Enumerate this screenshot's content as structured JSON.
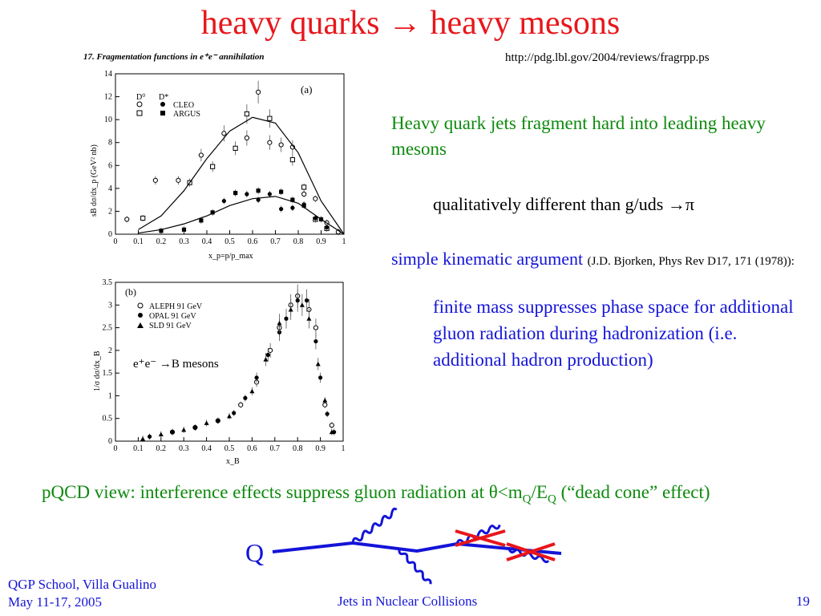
{
  "slide": {
    "title": "heavy quarks → heavy mesons",
    "url": "http://pdg.lbl.gov/2004/reviews/fragrpp.ps",
    "green_text": "Heavy quark jets fragment hard into leading heavy mesons",
    "qualitative": "qualitatively different than g/uds →π",
    "kinematic_label": "simple kinematic argument",
    "kinematic_ref": "(J.D. Bjorken, Phys Rev D17, 171 (1978)):",
    "finite_mass": "finite mass suppresses phase space for additional gluon radiation during hadronization (i.e. additional hadron production)",
    "pqcd_a": "pQCD view: interference effects suppress gluon radiation at θ<m",
    "pqcd_sub1": "Q",
    "pqcd_b": "/E",
    "pqcd_sub2": "Q",
    "pqcd_c": " (“dead cone” effect)",
    "diagram_label": "Q",
    "footer_left_1": "QGP School, Villa Gualino",
    "footer_left_2": "May 11-17, 2005",
    "footer_mid": "Jets in Nuclear Collisions",
    "footer_right": "19",
    "colors": {
      "title": "#e8161b",
      "green": "#0d8a0d",
      "blue": "#1414d8",
      "cross": "#e8161b"
    }
  },
  "chart_data": [
    {
      "type": "scatter",
      "header": "17. Fragmentation functions in e⁺e⁻ annihilation",
      "panel": "(a)",
      "xlabel": "x_p=p/p_max",
      "ylabel": "sB dσ/dx_p (GeV² nb)",
      "xlim": [
        0,
        1
      ],
      "ylim": [
        0,
        14
      ],
      "xticks": [
        0,
        0.1,
        0.2,
        0.3,
        0.4,
        0.5,
        0.6,
        0.7,
        0.8,
        0.9,
        1
      ],
      "yticks": [
        0,
        2,
        4,
        6,
        8,
        10,
        12,
        14
      ],
      "legend_header": [
        "D⁰",
        "D*"
      ],
      "legend": [
        "CLEO",
        "ARGUS"
      ],
      "series": [
        {
          "name": "D0 CLEO",
          "marker": "open-circle",
          "points": [
            [
              0.05,
              1.3
            ],
            [
              0.175,
              4.7
            ],
            [
              0.275,
              4.7
            ],
            [
              0.375,
              6.9
            ],
            [
              0.475,
              8.8
            ],
            [
              0.575,
              8.4
            ],
            [
              0.625,
              12.4
            ],
            [
              0.675,
              8.0
            ],
            [
              0.725,
              7.8
            ],
            [
              0.775,
              7.6
            ],
            [
              0.825,
              3.5
            ],
            [
              0.875,
              3.1
            ],
            [
              0.925,
              1.0
            ],
            [
              0.975,
              0.2
            ]
          ]
        },
        {
          "name": "D0 ARGUS",
          "marker": "open-square",
          "points": [
            [
              0.12,
              1.4
            ],
            [
              0.325,
              4.5
            ],
            [
              0.425,
              5.9
            ],
            [
              0.525,
              7.5
            ],
            [
              0.575,
              10.5
            ],
            [
              0.675,
              10.1
            ],
            [
              0.775,
              6.5
            ],
            [
              0.825,
              4.1
            ],
            [
              0.875,
              1.3
            ],
            [
              0.925,
              0.5
            ]
          ]
        },
        {
          "name": "D* CLEO",
          "marker": "filled-circle",
          "points": [
            [
              0.475,
              2.9
            ],
            [
              0.525,
              3.6
            ],
            [
              0.575,
              3.5
            ],
            [
              0.625,
              3.0
            ],
            [
              0.675,
              3.5
            ],
            [
              0.725,
              2.2
            ],
            [
              0.775,
              2.3
            ],
            [
              0.825,
              2.6
            ],
            [
              0.875,
              1.4
            ],
            [
              0.925,
              0.6
            ]
          ]
        },
        {
          "name": "D* ARGUS",
          "marker": "filled-square",
          "points": [
            [
              0.2,
              0.3
            ],
            [
              0.3,
              0.4
            ],
            [
              0.375,
              1.2
            ],
            [
              0.425,
              1.9
            ],
            [
              0.525,
              3.6
            ],
            [
              0.625,
              3.8
            ],
            [
              0.725,
              3.7
            ],
            [
              0.775,
              3.0
            ],
            [
              0.825,
              2.5
            ],
            [
              0.9,
              1.3
            ]
          ]
        },
        {
          "name": "fit D0",
          "marker": "line",
          "points": [
            [
              0.1,
              0.4
            ],
            [
              0.2,
              1.6
            ],
            [
              0.3,
              3.8
            ],
            [
              0.4,
              6.6
            ],
            [
              0.5,
              9.0
            ],
            [
              0.6,
              10.2
            ],
            [
              0.7,
              9.7
            ],
            [
              0.8,
              7.1
            ],
            [
              0.9,
              2.9
            ],
            [
              1.0,
              0.0
            ]
          ]
        },
        {
          "name": "fit D*",
          "marker": "line",
          "points": [
            [
              0.1,
              0.1
            ],
            [
              0.2,
              0.4
            ],
            [
              0.3,
              0.9
            ],
            [
              0.4,
              1.6
            ],
            [
              0.5,
              2.5
            ],
            [
              0.6,
              3.1
            ],
            [
              0.7,
              3.3
            ],
            [
              0.8,
              2.7
            ],
            [
              0.9,
              1.3
            ],
            [
              1.0,
              0.0
            ]
          ]
        }
      ]
    },
    {
      "type": "scatter",
      "panel": "(b)",
      "xlabel": "x_B",
      "ylabel": "1/σ dσ/dx_B",
      "xlim": [
        0,
        1
      ],
      "ylim": [
        0,
        3.5
      ],
      "xticks": [
        0,
        0.1,
        0.2,
        0.3,
        0.4,
        0.5,
        0.6,
        0.7,
        0.8,
        0.9,
        1
      ],
      "yticks": [
        0,
        0.5,
        1,
        1.5,
        2,
        2.5,
        3,
        3.5
      ],
      "legend": [
        "ALEPH 91 GeV",
        "OPAL 91 GeV",
        "SLD 91 GeV"
      ],
      "annotation": "e⁺e⁻ →B mesons",
      "series": [
        {
          "name": "ALEPH 91 GeV",
          "marker": "open-circle",
          "points": [
            [
              0.25,
              0.2
            ],
            [
              0.35,
              0.3
            ],
            [
              0.45,
              0.45
            ],
            [
              0.55,
              0.8
            ],
            [
              0.62,
              1.3
            ],
            [
              0.68,
              2.0
            ],
            [
              0.72,
              2.5
            ],
            [
              0.77,
              3.0
            ],
            [
              0.8,
              3.2
            ],
            [
              0.85,
              2.9
            ],
            [
              0.88,
              2.5
            ],
            [
              0.92,
              0.8
            ],
            [
              0.95,
              0.35
            ]
          ]
        },
        {
          "name": "OPAL 91 GeV",
          "marker": "filled-circle",
          "points": [
            [
              0.15,
              0.1
            ],
            [
              0.25,
              0.2
            ],
            [
              0.35,
              0.3
            ],
            [
              0.45,
              0.45
            ],
            [
              0.52,
              0.62
            ],
            [
              0.57,
              0.95
            ],
            [
              0.62,
              1.4
            ],
            [
              0.67,
              1.9
            ],
            [
              0.72,
              2.4
            ],
            [
              0.75,
              2.7
            ],
            [
              0.8,
              3.1
            ],
            [
              0.84,
              3.1
            ],
            [
              0.88,
              2.2
            ],
            [
              0.9,
              1.4
            ],
            [
              0.93,
              0.6
            ],
            [
              0.96,
              0.2
            ]
          ]
        },
        {
          "name": "SLD 91 GeV",
          "marker": "filled-triangle",
          "points": [
            [
              0.12,
              0.05
            ],
            [
              0.2,
              0.15
            ],
            [
              0.3,
              0.25
            ],
            [
              0.4,
              0.4
            ],
            [
              0.5,
              0.55
            ],
            [
              0.6,
              1.1
            ],
            [
              0.66,
              1.8
            ],
            [
              0.72,
              2.6
            ],
            [
              0.77,
              2.9
            ],
            [
              0.82,
              3.0
            ],
            [
              0.85,
              2.7
            ],
            [
              0.89,
              1.7
            ],
            [
              0.92,
              0.9
            ],
            [
              0.95,
              0.2
            ]
          ]
        }
      ]
    }
  ]
}
